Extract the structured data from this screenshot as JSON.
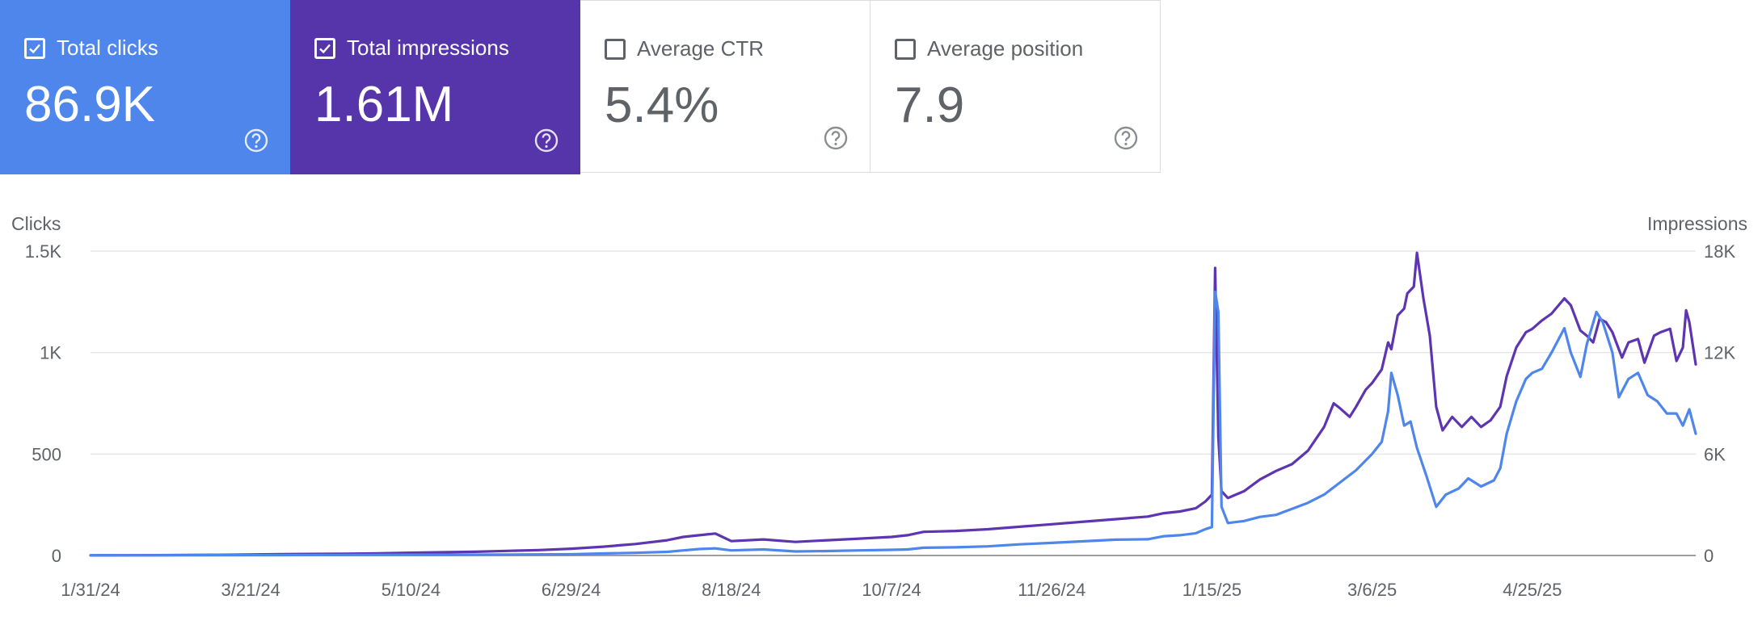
{
  "colors": {
    "clicks": "#4f86ec",
    "impressions": "#5e35b1",
    "clicks_card_bg": "#4f86ec",
    "impressions_card_bg": "#5635aa",
    "inactive_text": "#5f6368",
    "grid": "#e6e6e6",
    "axis": "#9e9e9e"
  },
  "metrics": [
    {
      "label": "Total clicks",
      "value": "86.9K",
      "checked": true,
      "icon": "help-icon"
    },
    {
      "label": "Total impressions",
      "value": "1.61M",
      "checked": true,
      "icon": "help-icon"
    },
    {
      "label": "Average CTR",
      "value": "5.4%",
      "checked": false,
      "icon": "help-icon"
    },
    {
      "label": "Average position",
      "value": "7.9",
      "checked": false,
      "icon": "help-icon"
    }
  ],
  "chart_data": {
    "type": "line",
    "left_axis_title": "Clicks",
    "right_axis_title": "Impressions",
    "left_ticks": [
      "0",
      "500",
      "1K",
      "1.5K"
    ],
    "right_ticks": [
      "0",
      "6K",
      "12K",
      "18K"
    ],
    "ylim_left": [
      0,
      1500
    ],
    "ylim_right": [
      0,
      18000
    ],
    "x_tick_labels": [
      "1/31/24",
      "3/21/24",
      "5/10/24",
      "6/29/24",
      "8/18/24",
      "10/7/24",
      "11/26/24",
      "1/15/25",
      "3/6/25",
      "4/25/25"
    ],
    "x_tick_days": [
      0,
      50,
      100,
      150,
      200,
      250,
      300,
      350,
      400,
      450
    ],
    "x_start": "1/31/24",
    "x_end": "5/30/25",
    "grid": true,
    "series": [
      {
        "name": "Clicks",
        "axis": "left",
        "points": [
          [
            0,
            1
          ],
          [
            30,
            1
          ],
          [
            60,
            2
          ],
          [
            90,
            3
          ],
          [
            120,
            4
          ],
          [
            150,
            6
          ],
          [
            160,
            10
          ],
          [
            170,
            13
          ],
          [
            180,
            18
          ],
          [
            185,
            25
          ],
          [
            190,
            32
          ],
          [
            195,
            35
          ],
          [
            200,
            25
          ],
          [
            210,
            30
          ],
          [
            220,
            20
          ],
          [
            230,
            22
          ],
          [
            240,
            25
          ],
          [
            250,
            28
          ],
          [
            255,
            30
          ],
          [
            260,
            38
          ],
          [
            270,
            40
          ],
          [
            280,
            45
          ],
          [
            290,
            55
          ],
          [
            300,
            62
          ],
          [
            310,
            70
          ],
          [
            320,
            78
          ],
          [
            330,
            80
          ],
          [
            335,
            95
          ],
          [
            340,
            100
          ],
          [
            345,
            110
          ],
          [
            348,
            130
          ],
          [
            350,
            140
          ],
          [
            351,
            1300
          ],
          [
            352,
            1200
          ],
          [
            353,
            240
          ],
          [
            355,
            160
          ],
          [
            360,
            170
          ],
          [
            365,
            190
          ],
          [
            370,
            200
          ],
          [
            375,
            230
          ],
          [
            380,
            260
          ],
          [
            385,
            300
          ],
          [
            390,
            360
          ],
          [
            395,
            420
          ],
          [
            400,
            500
          ],
          [
            403,
            560
          ],
          [
            405,
            710
          ],
          [
            406,
            900
          ],
          [
            408,
            790
          ],
          [
            410,
            640
          ],
          [
            412,
            660
          ],
          [
            414,
            530
          ],
          [
            417,
            390
          ],
          [
            420,
            240
          ],
          [
            423,
            300
          ],
          [
            427,
            330
          ],
          [
            430,
            380
          ],
          [
            434,
            340
          ],
          [
            438,
            370
          ],
          [
            440,
            430
          ],
          [
            442,
            600
          ],
          [
            445,
            760
          ],
          [
            448,
            870
          ],
          [
            450,
            900
          ],
          [
            453,
            920
          ],
          [
            456,
            1000
          ],
          [
            460,
            1120
          ],
          [
            462,
            1000
          ],
          [
            465,
            880
          ],
          [
            467,
            1040
          ],
          [
            470,
            1200
          ],
          [
            472,
            1150
          ],
          [
            475,
            1000
          ],
          [
            477,
            780
          ],
          [
            480,
            870
          ],
          [
            483,
            900
          ],
          [
            486,
            790
          ],
          [
            489,
            760
          ],
          [
            492,
            700
          ],
          [
            495,
            700
          ],
          [
            497,
            640
          ],
          [
            499,
            720
          ],
          [
            501,
            600
          ]
        ]
      },
      {
        "name": "Impressions",
        "axis": "right",
        "points": [
          [
            0,
            10
          ],
          [
            20,
            20
          ],
          [
            40,
            40
          ],
          [
            60,
            80
          ],
          [
            80,
            100
          ],
          [
            90,
            130
          ],
          [
            100,
            160
          ],
          [
            110,
            190
          ],
          [
            120,
            220
          ],
          [
            130,
            270
          ],
          [
            140,
            320
          ],
          [
            150,
            400
          ],
          [
            160,
            520
          ],
          [
            170,
            680
          ],
          [
            180,
            900
          ],
          [
            185,
            1100
          ],
          [
            190,
            1200
          ],
          [
            195,
            1300
          ],
          [
            200,
            850
          ],
          [
            210,
            950
          ],
          [
            220,
            800
          ],
          [
            230,
            900
          ],
          [
            240,
            1000
          ],
          [
            250,
            1100
          ],
          [
            255,
            1200
          ],
          [
            260,
            1400
          ],
          [
            270,
            1450
          ],
          [
            280,
            1550
          ],
          [
            290,
            1700
          ],
          [
            300,
            1850
          ],
          [
            310,
            2000
          ],
          [
            320,
            2150
          ],
          [
            330,
            2300
          ],
          [
            335,
            2500
          ],
          [
            340,
            2600
          ],
          [
            345,
            2800
          ],
          [
            348,
            3200
          ],
          [
            350,
            3600
          ],
          [
            351,
            17000
          ],
          [
            352,
            7000
          ],
          [
            353,
            3800
          ],
          [
            355,
            3400
          ],
          [
            360,
            3800
          ],
          [
            365,
            4500
          ],
          [
            370,
            5000
          ],
          [
            375,
            5400
          ],
          [
            380,
            6200
          ],
          [
            385,
            7600
          ],
          [
            388,
            9000
          ],
          [
            390,
            8700
          ],
          [
            393,
            8200
          ],
          [
            395,
            8800
          ],
          [
            398,
            9800
          ],
          [
            400,
            10200
          ],
          [
            403,
            11000
          ],
          [
            405,
            12600
          ],
          [
            406,
            12200
          ],
          [
            408,
            14200
          ],
          [
            410,
            14600
          ],
          [
            411,
            15500
          ],
          [
            413,
            15900
          ],
          [
            414,
            17900
          ],
          [
            416,
            15200
          ],
          [
            418,
            13000
          ],
          [
            420,
            8800
          ],
          [
            422,
            7400
          ],
          [
            425,
            8200
          ],
          [
            428,
            7600
          ],
          [
            431,
            8200
          ],
          [
            434,
            7600
          ],
          [
            437,
            8000
          ],
          [
            440,
            8800
          ],
          [
            442,
            10600
          ],
          [
            445,
            12300
          ],
          [
            448,
            13200
          ],
          [
            450,
            13400
          ],
          [
            453,
            13900
          ],
          [
            456,
            14300
          ],
          [
            460,
            15200
          ],
          [
            462,
            14800
          ],
          [
            465,
            13300
          ],
          [
            467,
            13000
          ],
          [
            469,
            12600
          ],
          [
            471,
            14000
          ],
          [
            473,
            13800
          ],
          [
            475,
            13200
          ],
          [
            478,
            11700
          ],
          [
            480,
            12600
          ],
          [
            483,
            12800
          ],
          [
            485,
            11400
          ],
          [
            488,
            13000
          ],
          [
            490,
            13200
          ],
          [
            493,
            13400
          ],
          [
            495,
            11500
          ],
          [
            497,
            12300
          ],
          [
            498,
            14500
          ],
          [
            499,
            13800
          ],
          [
            501,
            11300
          ]
        ]
      }
    ]
  }
}
